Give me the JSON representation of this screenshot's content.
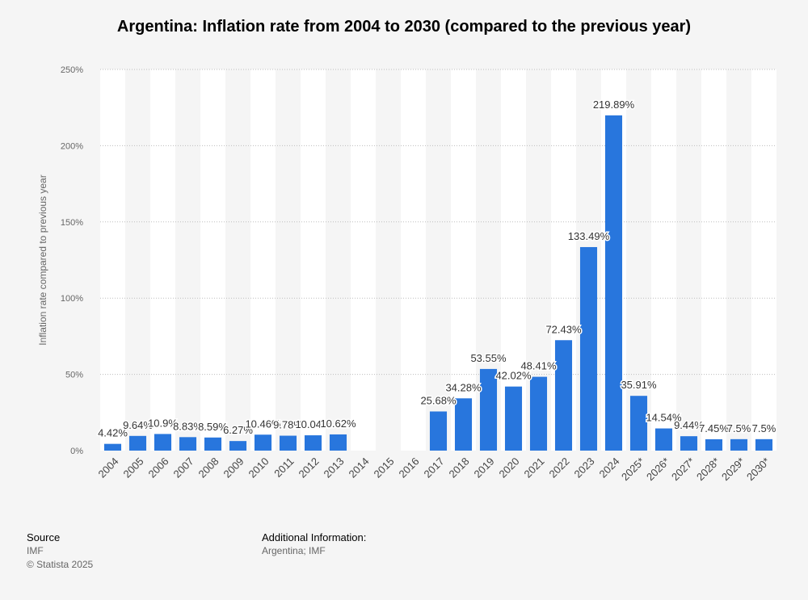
{
  "title": "Argentina: Inflation rate from 2004 to 2030 (compared to the previous year)",
  "chart_data": {
    "type": "bar",
    "title": "Argentina: Inflation rate from 2004 to 2030 (compared to the previous year)",
    "xlabel": "",
    "ylabel": "Inflation rate compared to previous year",
    "ylim": [
      0,
      250
    ],
    "yticks": [
      0,
      50,
      100,
      150,
      200,
      250
    ],
    "ytick_labels": [
      "0%",
      "50%",
      "100%",
      "150%",
      "200%",
      "250%"
    ],
    "grid": true,
    "bar_color": "#2876dd",
    "categories": [
      "2004",
      "2005",
      "2006",
      "2007",
      "2008",
      "2009",
      "2010",
      "2011",
      "2012",
      "2013",
      "2014",
      "2015",
      "2016",
      "2017",
      "2018",
      "2019",
      "2020",
      "2021",
      "2022",
      "2023",
      "2024",
      "2025*",
      "2026*",
      "2027*",
      "2028*",
      "2029*",
      "2030*"
    ],
    "values": [
      4.42,
      9.64,
      10.9,
      8.83,
      8.59,
      6.27,
      10.46,
      9.78,
      10.04,
      10.62,
      null,
      null,
      null,
      25.68,
      34.28,
      53.55,
      42.02,
      48.41,
      72.43,
      133.49,
      219.89,
      35.91,
      14.54,
      9.44,
      7.45,
      7.5,
      7.5
    ],
    "data_labels": [
      "4.42%",
      "9.64%",
      "10.9%",
      "8.83%",
      "8.59%",
      "6.27%",
      "10.46%",
      "9.78%",
      "10.04%",
      "10.62%",
      "",
      "",
      "",
      "25.68%",
      "34.28%",
      "53.55%",
      "42.02%",
      "48.41%",
      "72.43%",
      "133.49%",
      "219.89%",
      "35.91%",
      "14.54%",
      "9.44%",
      "7.45%",
      "7.5%",
      "7.5%"
    ]
  },
  "footer": {
    "source_heading": "Source",
    "source_name": "IMF",
    "copyright": "© Statista 2025",
    "additional_heading": "Additional Information:",
    "additional_text": "Argentina; IMF"
  }
}
